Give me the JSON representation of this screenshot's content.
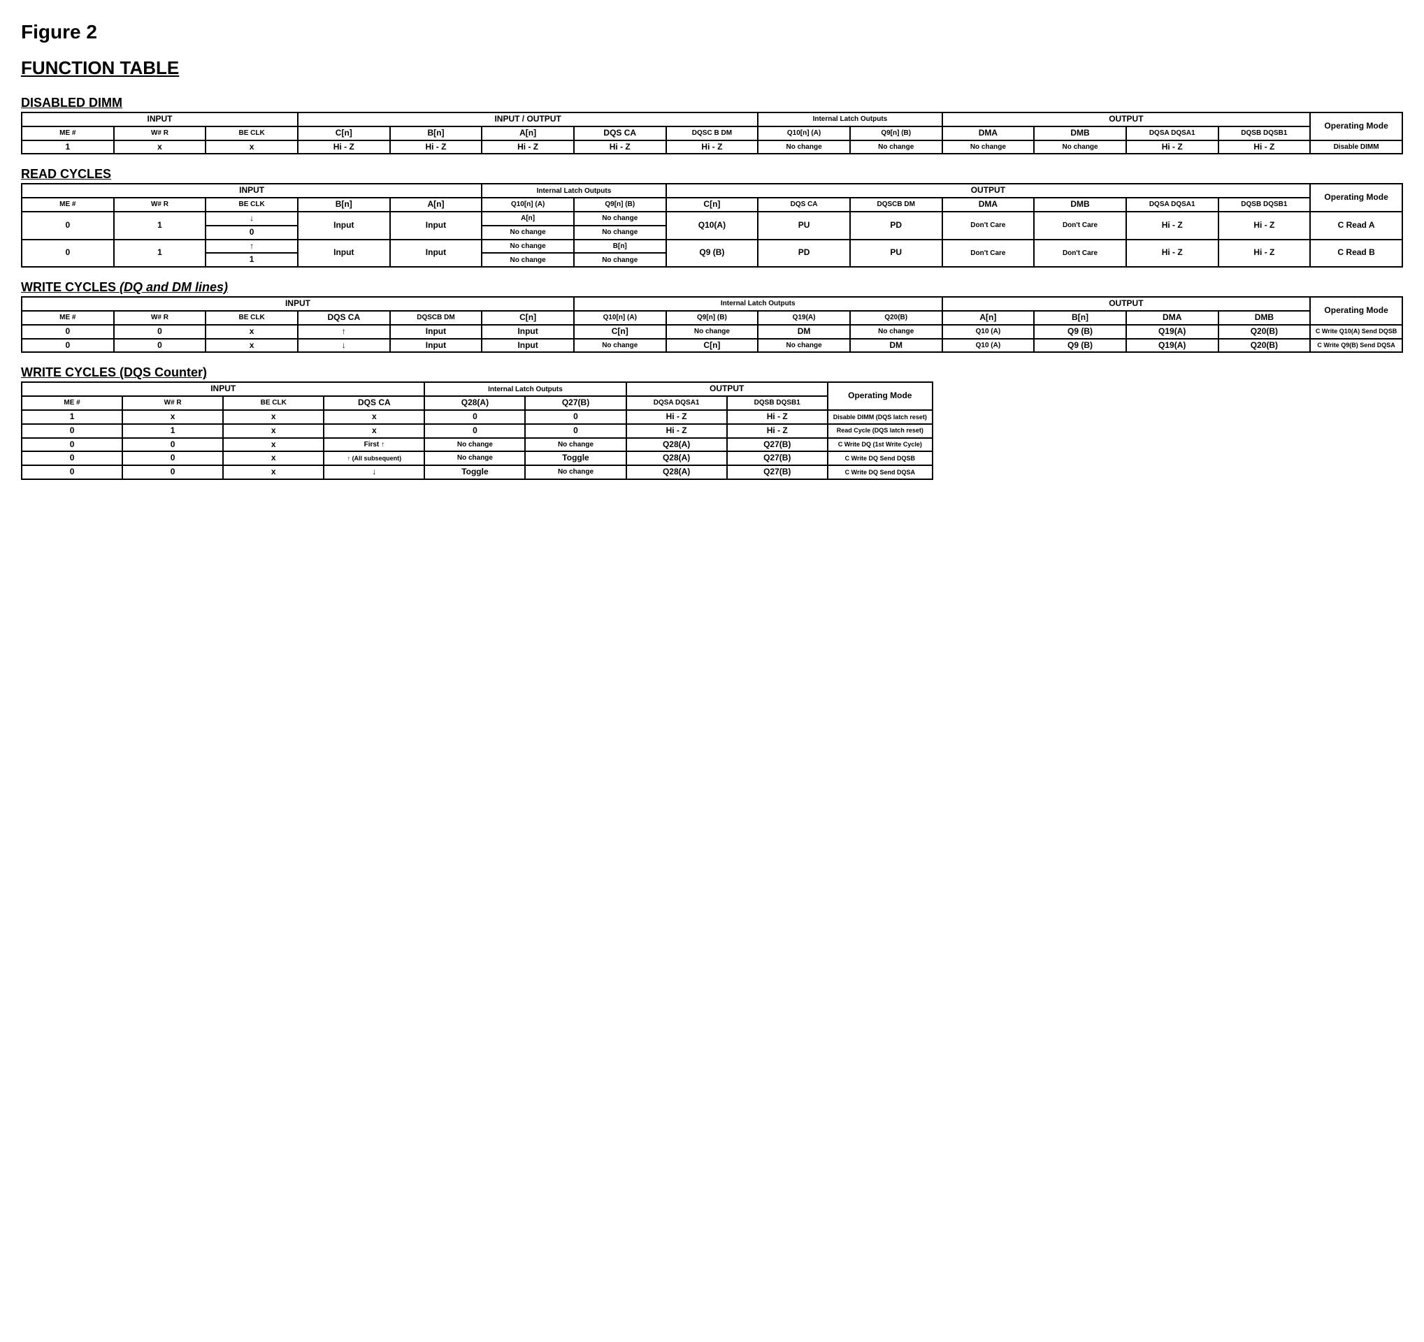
{
  "figureTitle": "Figure 2",
  "mainTitle": "FUNCTION TABLE",
  "arrows": {
    "down": "↓",
    "up": "↑"
  },
  "disabled": {
    "title": "DISABLED DIMM",
    "groupHeaders": [
      "INPUT",
      "INPUT / OUTPUT",
      "Internal Latch Outputs",
      "OUTPUT",
      "Operating Mode"
    ],
    "colHeaders": [
      "ME #",
      "W# R",
      "BE CLK",
      "C[n]",
      "B[n]",
      "A[n]",
      "DQS CA",
      "DQSC B DM",
      "Q10[n] (A)",
      "Q9[n] (B)",
      "DMA",
      "DMB",
      "DQSA DQSA1",
      "DQSB DQSB1"
    ],
    "row": [
      "1",
      "x",
      "x",
      "Hi - Z",
      "Hi - Z",
      "Hi - Z",
      "Hi - Z",
      "Hi - Z",
      "No change",
      "No change",
      "No change",
      "No change",
      "Hi - Z",
      "Hi - Z",
      "Disable DIMM"
    ]
  },
  "read": {
    "title": "READ CYCLES",
    "groupHeaders": [
      "INPUT",
      "Internal Latch Outputs",
      "OUTPUT",
      "Operating Mode"
    ],
    "colHeaders": [
      "ME #",
      "W# R",
      "BE CLK",
      "B[n]",
      "A[n]",
      "Q10[n] (A)",
      "Q9[n] (B)",
      "C[n]",
      "DQS CA",
      "DQSCB DM",
      "DMA",
      "DMB",
      "DQSA DQSA1",
      "DQSB DQSB1"
    ],
    "rowA": {
      "me": "0",
      "wr": "1",
      "clk1": "↓",
      "clk2": "0",
      "bn": "Input",
      "an": "Input",
      "q10_1": "A[n]",
      "q10_2": "No change",
      "q9_1": "No change",
      "q9_2": "No change",
      "cn": "Q10(A)",
      "dqsca": "PU",
      "dqscbdm": "PD",
      "dma": "Don't Care",
      "dmb": "Don't Care",
      "dqsa": "Hi - Z",
      "dqsb": "Hi - Z",
      "mode": "C Read A"
    },
    "rowB": {
      "me": "0",
      "wr": "1",
      "clk1": "↑",
      "clk2": "1",
      "bn": "Input",
      "an": "Input",
      "q10_1": "No change",
      "q10_2": "No change",
      "q9_1": "B[n]",
      "q9_2": "No change",
      "cn": "Q9 (B)",
      "dqsca": "PD",
      "dqscbdm": "PU",
      "dma": "Don't Care",
      "dmb": "Don't Care",
      "dqsa": "Hi - Z",
      "dqsb": "Hi - Z",
      "mode": "C Read B"
    }
  },
  "writeDQ": {
    "title": "WRITE CYCLES",
    "subtitle": "(DQ and DM lines)",
    "groupHeaders": [
      "INPUT",
      "Internal Latch Outputs",
      "OUTPUT",
      "Operating Mode"
    ],
    "colHeaders": [
      "ME #",
      "W# R",
      "BE CLK",
      "DQS CA",
      "DQSCB DM",
      "C[n]",
      "Q10[n] (A)",
      "Q9[n] (B)",
      "Q19(A)",
      "Q20(B)",
      "A[n]",
      "B[n]",
      "DMA",
      "DMB"
    ],
    "row1": [
      "0",
      "0",
      "x",
      "↑",
      "Input",
      "Input",
      "C[n]",
      "No change",
      "DM",
      "No change",
      "Q10 (A)",
      "Q9 (B)",
      "Q19(A)",
      "Q20(B)",
      "C Write Q10(A) Send DQSB"
    ],
    "row2": [
      "0",
      "0",
      "x",
      "↓",
      "Input",
      "Input",
      "No change",
      "C[n]",
      "No change",
      "DM",
      "Q10 (A)",
      "Q9 (B)",
      "Q19(A)",
      "Q20(B)",
      "C Write Q9(B) Send DQSA"
    ]
  },
  "writeDQS": {
    "title": "WRITE CYCLES",
    "subtitle": "(DQS Counter)",
    "groupHeaders": [
      "INPUT",
      "Internal Latch Outputs",
      "OUTPUT",
      "Operating Mode"
    ],
    "colHeaders": [
      "ME #",
      "W# R",
      "BE CLK",
      "DQS CA",
      "Q28(A)",
      "Q27(B)",
      "DQSA DQSA1",
      "DQSB DQSB1"
    ],
    "rows": [
      [
        "1",
        "x",
        "x",
        "x",
        "0",
        "0",
        "Hi - Z",
        "Hi - Z",
        "Disable DIMM (DQS latch reset)"
      ],
      [
        "0",
        "1",
        "x",
        "x",
        "0",
        "0",
        "Hi - Z",
        "Hi - Z",
        "Read Cycle (DQS latch reset)"
      ],
      [
        "0",
        "0",
        "x",
        "First ↑",
        "No change",
        "No change",
        "Q28(A)",
        "Q27(B)",
        "C Write DQ (1st Write Cycle)"
      ],
      [
        "0",
        "0",
        "x",
        "↑ (All subsequent)",
        "No change",
        "Toggle",
        "Q28(A)",
        "Q27(B)",
        "C Write DQ Send DQSB"
      ],
      [
        "0",
        "0",
        "x",
        "↓",
        "Toggle",
        "No change",
        "Q28(A)",
        "Q27(B)",
        "C Write DQ Send DQSA"
      ]
    ]
  }
}
